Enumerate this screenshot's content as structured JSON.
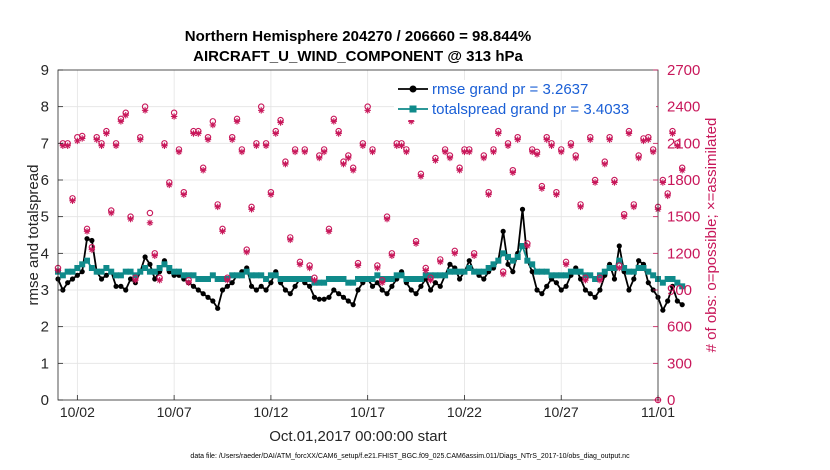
{
  "chart_data": {
    "type": "line",
    "title": "Northern Hemisphere 204270 / 206660 = 98.844%",
    "subtitle": "AIRCRAFT_U_WIND_COMPONENT @ 313 hPa",
    "xlabel": "Oct.01,2017 00:00:00 start",
    "ylabel_left": "rmse and totalspread",
    "ylabel_right": "# of obs: o=possible; ×=assimilated",
    "ylim_left": [
      0,
      9
    ],
    "ylim_right": [
      0,
      2700
    ],
    "xlim_days": [
      0,
      31
    ],
    "yticks_left": [
      "0",
      "1",
      "2",
      "3",
      "4",
      "5",
      "6",
      "7",
      "8",
      "9"
    ],
    "yticks_right": [
      "0",
      "300",
      "600",
      "900",
      "1200",
      "1500",
      "1800",
      "2100",
      "2400",
      "2700"
    ],
    "xticks": [
      {
        "day": 1,
        "label": "10/02"
      },
      {
        "day": 6,
        "label": "10/07"
      },
      {
        "day": 11,
        "label": "10/12"
      },
      {
        "day": 16,
        "label": "10/17"
      },
      {
        "day": 21,
        "label": "10/22"
      },
      {
        "day": 26,
        "label": "10/27"
      },
      {
        "day": 31,
        "label": "11/01"
      }
    ],
    "grid": true,
    "legend_position": "top-right",
    "footnote": "data file: /Users/raeder/DAI/ATM_forcXX/CAM6_setup/f.e21.FHIST_BGC.f09_025.CAM6assim.011/Diags_NTrS_2017-10/obs_diag_output.nc",
    "time_step_days": 0.25,
    "series": [
      {
        "name": "rmse grand pr = 3.2637",
        "axis": "left",
        "color": "#000000",
        "marker": "dot",
        "values": [
          3.3,
          3.0,
          3.2,
          3.3,
          3.4,
          3.5,
          4.4,
          4.35,
          3.5,
          3.3,
          3.4,
          3.5,
          3.1,
          3.1,
          3.0,
          3.3,
          3.2,
          3.5,
          3.9,
          3.7,
          3.3,
          3.5,
          3.8,
          3.5,
          3.4,
          3.4,
          3.3,
          3.2,
          3.1,
          3.0,
          2.9,
          2.8,
          2.7,
          2.5,
          3.0,
          3.1,
          3.2,
          3.4,
          3.5,
          3.6,
          3.1,
          3.0,
          3.1,
          3.0,
          3.2,
          3.5,
          3.2,
          3.0,
          2.9,
          3.1,
          3.3,
          3.2,
          3.1,
          2.8,
          2.75,
          2.75,
          2.8,
          3.0,
          2.9,
          2.8,
          2.7,
          2.6,
          3.0,
          3.2,
          3.3,
          3.1,
          3.2,
          3.0,
          2.9,
          3.1,
          3.3,
          3.5,
          3.2,
          3.0,
          2.9,
          3.1,
          3.3,
          3.0,
          3.2,
          3.1,
          3.4,
          3.7,
          3.6,
          3.3,
          3.5,
          3.8,
          3.5,
          3.4,
          3.3,
          3.5,
          3.6,
          3.8,
          4.6,
          3.7,
          3.5,
          4.0,
          5.2,
          3.8,
          3.5,
          3.0,
          2.9,
          3.1,
          3.3,
          3.2,
          3.0,
          3.1,
          3.4,
          3.6,
          3.3,
          3.0,
          2.9,
          2.8,
          3.0,
          3.4,
          3.7,
          3.3,
          4.2,
          3.5,
          3.0,
          3.3,
          3.8,
          3.7,
          3.2,
          3.0,
          2.8,
          2.45,
          2.7,
          3.1,
          2.7,
          2.6
        ]
      },
      {
        "name": "totalspread grand pr = 3.4033",
        "axis": "left",
        "color": "#0f8a8a",
        "marker": "square",
        "values": [
          3.5,
          3.4,
          3.5,
          3.5,
          3.6,
          3.7,
          3.8,
          3.6,
          3.5,
          3.5,
          3.6,
          3.5,
          3.4,
          3.4,
          3.5,
          3.5,
          3.4,
          3.5,
          3.6,
          3.5,
          3.5,
          3.6,
          3.7,
          3.6,
          3.5,
          3.5,
          3.4,
          3.4,
          3.4,
          3.3,
          3.3,
          3.3,
          3.4,
          3.3,
          3.3,
          3.3,
          3.4,
          3.4,
          3.4,
          3.5,
          3.4,
          3.4,
          3.4,
          3.3,
          3.4,
          3.4,
          3.3,
          3.3,
          3.3,
          3.3,
          3.3,
          3.3,
          3.3,
          3.2,
          3.2,
          3.2,
          3.3,
          3.3,
          3.3,
          3.3,
          3.2,
          3.2,
          3.3,
          3.3,
          3.3,
          3.3,
          3.4,
          3.3,
          3.3,
          3.3,
          3.4,
          3.4,
          3.3,
          3.3,
          3.3,
          3.3,
          3.4,
          3.4,
          3.4,
          3.4,
          3.4,
          3.5,
          3.5,
          3.5,
          3.5,
          3.6,
          3.5,
          3.5,
          3.5,
          3.6,
          3.7,
          3.8,
          4.0,
          3.9,
          3.8,
          3.9,
          4.2,
          3.8,
          3.7,
          3.5,
          3.5,
          3.5,
          3.4,
          3.4,
          3.4,
          3.4,
          3.5,
          3.5,
          3.5,
          3.4,
          3.4,
          3.3,
          3.4,
          3.5,
          3.6,
          3.6,
          3.8,
          3.6,
          3.5,
          3.5,
          3.6,
          3.6,
          3.5,
          3.4,
          3.3,
          3.2,
          3.3,
          3.3,
          3.2,
          3.1
        ]
      },
      {
        "name": "possible",
        "axis": "right",
        "color": "#c8175a",
        "marker": "circle",
        "values": [
          1080,
          2100,
          2100,
          1650,
          2150,
          2160,
          1400,
          1250,
          2150,
          2100,
          2200,
          1550,
          2100,
          2300,
          2350,
          1500,
          1000,
          2150,
          2400,
          1530,
          1200,
          1000,
          2100,
          1780,
          2350,
          2050,
          1700,
          980,
          2200,
          2200,
          1900,
          2150,
          2280,
          1600,
          1400,
          1000,
          2150,
          2300,
          2050,
          1230,
          1580,
          2100,
          2400,
          2100,
          1700,
          2200,
          2290,
          1950,
          1330,
          2050,
          1130,
          2050,
          1100,
          1000,
          2000,
          2050,
          1400,
          2300,
          2200,
          1950,
          2000,
          1900,
          1120,
          2100,
          2400,
          2050,
          1100,
          980,
          1500,
          1200,
          2100,
          2100,
          2050,
          2300,
          1300,
          1850,
          1080,
          1000,
          1980,
          1150,
          2050,
          2000,
          1220,
          1900,
          2050,
          2050,
          1200,
          2400,
          2000,
          1700,
          2050,
          2200,
          1050,
          2100,
          1880,
          2150,
          2350,
          1280,
          2050,
          2030,
          1750,
          2150,
          2100,
          1700,
          2050,
          1130,
          2100,
          2000,
          1600,
          1000,
          2150,
          1800,
          1000,
          1950,
          2150,
          1800,
          1100,
          1520,
          2200,
          1600,
          2000,
          2140,
          2150,
          2050,
          1580,
          1800,
          1690,
          2200,
          2100,
          1900
        ]
      },
      {
        "name": "assimilated",
        "axis": "right",
        "color": "#c8175a",
        "marker": "asterisk",
        "values": [
          1060,
          2080,
          2080,
          1630,
          2120,
          2140,
          1380,
          1230,
          2130,
          2080,
          2180,
          1530,
          2080,
          2280,
          2330,
          1480,
          980,
          2130,
          2370,
          1450,
          1180,
          980,
          2080,
          1760,
          2320,
          2030,
          1680,
          960,
          2180,
          2180,
          1880,
          2130,
          2250,
          1580,
          1380,
          980,
          2130,
          2280,
          2030,
          1210,
          1560,
          2080,
          2370,
          2080,
          1680,
          2180,
          2270,
          1930,
          1310,
          2030,
          1110,
          2030,
          1080,
          980,
          1980,
          2030,
          1380,
          2280,
          2180,
          1930,
          1980,
          1880,
          1100,
          2080,
          2370,
          2030,
          1080,
          960,
          1480,
          1180,
          2080,
          2080,
          2030,
          2280,
          1280,
          1830,
          1060,
          980,
          1960,
          1130,
          2030,
          1980,
          1200,
          1880,
          2030,
          2030,
          1180,
          2370,
          1980,
          1680,
          2030,
          2180,
          1030,
          2080,
          1860,
          2130,
          2330,
          1260,
          2030,
          2010,
          1730,
          2130,
          2080,
          1680,
          2030,
          1110,
          2080,
          1980,
          1580,
          980,
          2130,
          1780,
          980,
          1930,
          2130,
          1780,
          1080,
          1500,
          2180,
          1580,
          1980,
          2120,
          2130,
          2030,
          1560,
          1780,
          1670,
          2180,
          2080,
          1880
        ]
      }
    ]
  }
}
